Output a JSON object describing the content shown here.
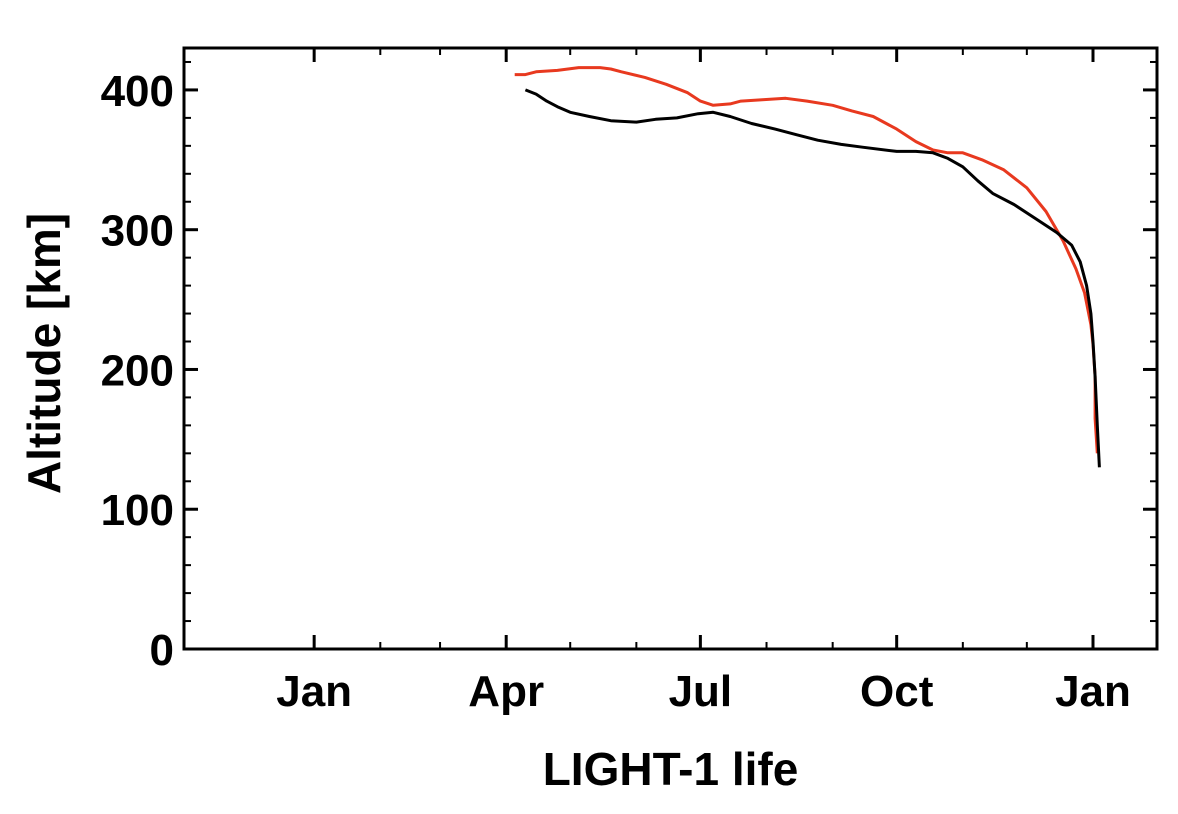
{
  "chart_data": {
    "type": "line",
    "title": "",
    "xlabel": "LIGHT-1 life",
    "ylabel": "Altitude [km]",
    "x_ticks": [
      {
        "label": "Jan",
        "date": "2022-01-01"
      },
      {
        "label": "Apr",
        "date": "2022-04-01"
      },
      {
        "label": "Jul",
        "date": "2022-07-01"
      },
      {
        "label": "Oct",
        "date": "2022-10-01"
      },
      {
        "label": "Jan",
        "date": "2023-01-01"
      }
    ],
    "xlim": [
      "2021-11-01",
      "2023-01-31"
    ],
    "ylim": [
      0,
      430
    ],
    "y_ticks": [
      0,
      100,
      200,
      300,
      400
    ],
    "grid": false,
    "series": [
      {
        "color": "#e8391f",
        "points": [
          [
            "2022-04-05",
            411
          ],
          [
            "2022-04-10",
            411
          ],
          [
            "2022-04-15",
            413
          ],
          [
            "2022-04-25",
            414
          ],
          [
            "2022-05-05",
            416
          ],
          [
            "2022-05-15",
            416
          ],
          [
            "2022-05-20",
            415
          ],
          [
            "2022-05-25",
            413
          ],
          [
            "2022-06-05",
            409
          ],
          [
            "2022-06-15",
            404
          ],
          [
            "2022-06-25",
            398
          ],
          [
            "2022-07-01",
            392
          ],
          [
            "2022-07-07",
            389
          ],
          [
            "2022-07-15",
            390
          ],
          [
            "2022-07-20",
            392
          ],
          [
            "2022-07-30",
            393
          ],
          [
            "2022-08-10",
            394
          ],
          [
            "2022-08-20",
            392
          ],
          [
            "2022-09-01",
            389
          ],
          [
            "2022-09-10",
            385
          ],
          [
            "2022-09-20",
            381
          ],
          [
            "2022-10-01",
            372
          ],
          [
            "2022-10-10",
            363
          ],
          [
            "2022-10-18",
            357
          ],
          [
            "2022-10-25",
            355
          ],
          [
            "2022-11-01",
            355
          ],
          [
            "2022-11-10",
            350
          ],
          [
            "2022-11-20",
            343
          ],
          [
            "2022-12-01",
            330
          ],
          [
            "2022-12-10",
            313
          ],
          [
            "2022-12-18",
            292
          ],
          [
            "2022-12-24",
            272
          ],
          [
            "2022-12-28",
            255
          ],
          [
            "2022-12-31",
            232
          ],
          [
            "2023-01-01",
            218
          ],
          [
            "2023-01-02",
            195
          ],
          [
            "2023-01-02",
            165
          ],
          [
            "2023-01-03",
            140
          ]
        ]
      },
      {
        "color": "#000000",
        "points": [
          [
            "2022-04-10",
            400
          ],
          [
            "2022-04-15",
            397
          ],
          [
            "2022-04-20",
            392
          ],
          [
            "2022-04-25",
            388
          ],
          [
            "2022-05-01",
            384
          ],
          [
            "2022-05-10",
            381
          ],
          [
            "2022-05-20",
            378
          ],
          [
            "2022-06-01",
            377
          ],
          [
            "2022-06-10",
            379
          ],
          [
            "2022-06-20",
            380
          ],
          [
            "2022-06-30",
            383
          ],
          [
            "2022-07-07",
            384
          ],
          [
            "2022-07-15",
            381
          ],
          [
            "2022-07-25",
            376
          ],
          [
            "2022-08-05",
            372
          ],
          [
            "2022-08-15",
            368
          ],
          [
            "2022-08-25",
            364
          ],
          [
            "2022-09-05",
            361
          ],
          [
            "2022-09-15",
            359
          ],
          [
            "2022-10-01",
            356
          ],
          [
            "2022-10-10",
            356
          ],
          [
            "2022-10-18",
            355
          ],
          [
            "2022-10-25",
            351
          ],
          [
            "2022-11-01",
            345
          ],
          [
            "2022-11-08",
            335
          ],
          [
            "2022-11-15",
            326
          ],
          [
            "2022-11-25",
            318
          ],
          [
            "2022-12-05",
            308
          ],
          [
            "2022-12-15",
            298
          ],
          [
            "2022-12-22",
            289
          ],
          [
            "2022-12-26",
            277
          ],
          [
            "2022-12-29",
            260
          ],
          [
            "2022-12-31",
            240
          ],
          [
            "2023-01-01",
            220
          ],
          [
            "2023-01-02",
            195
          ],
          [
            "2023-01-03",
            160
          ],
          [
            "2023-01-04",
            130
          ]
        ]
      }
    ]
  }
}
